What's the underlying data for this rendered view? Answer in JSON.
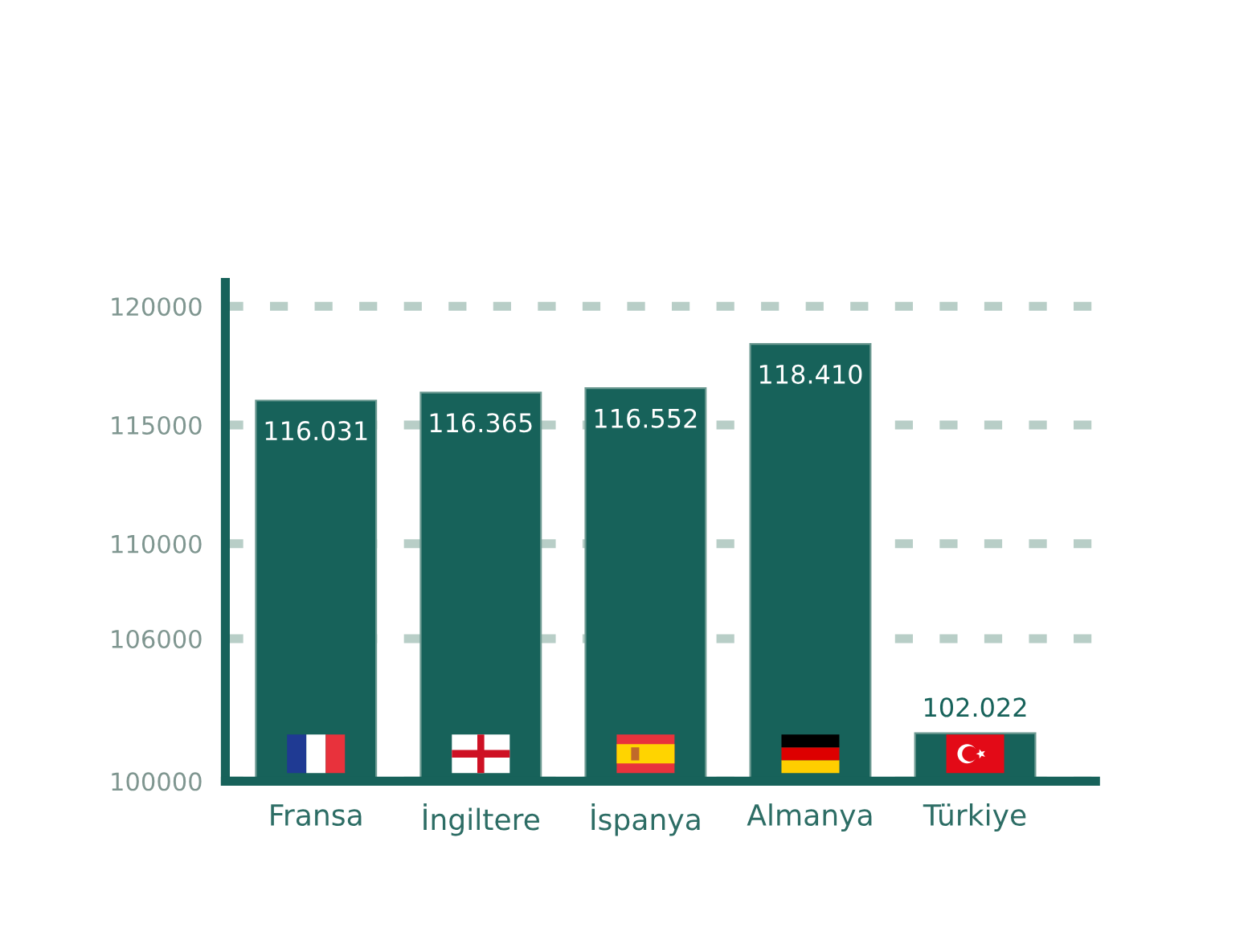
{
  "chart_data": {
    "type": "bar",
    "categories": [
      "Fransa",
      "İngiltere",
      "İspanya",
      "Almanya",
      "Türkiye"
    ],
    "values": [
      116031,
      116365,
      116552,
      118410,
      102022
    ],
    "color": "#17625a",
    "value_labels": [
      "116.031",
      "116.365",
      "116.552",
      "118.410",
      "102.022"
    ],
    "ylim": [
      100000,
      121000
    ],
    "yticks": [
      100000,
      106000,
      110000,
      115000,
      120000
    ],
    "grid": "y"
  }
}
